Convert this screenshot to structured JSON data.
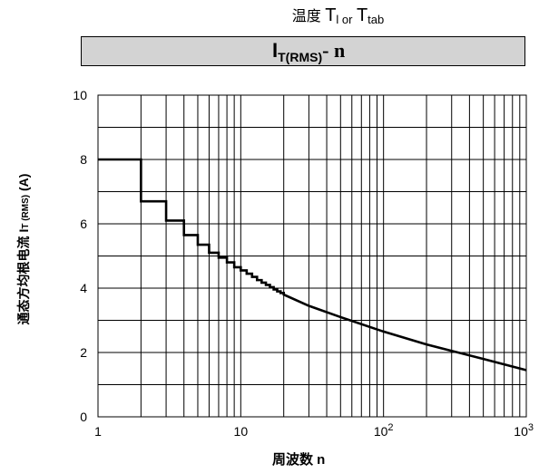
{
  "header": {
    "prefix": "温度 ",
    "t1": "T",
    "t1_sub": "l or",
    "t2": "T",
    "t2_sub": "tab"
  },
  "band": {
    "i": "I",
    "i_sub": "T(RMS)",
    "suffix": "- n"
  },
  "chart_data": {
    "type": "line",
    "title": "",
    "xlabel": "周波数 n",
    "ylabel_main": "通态方均根电流 I",
    "ylabel_sub": "T (RMS)",
    "ylabel_unit": " (A)",
    "x_scale": "log",
    "xlim": [
      1,
      1000
    ],
    "ylim": [
      0,
      10
    ],
    "grid": true,
    "x_ticks": [
      {
        "value": 1,
        "label": "1"
      },
      {
        "value": 10,
        "label": "10"
      },
      {
        "value": 100,
        "base": "10",
        "exp": "2"
      },
      {
        "value": 1000,
        "base": "10",
        "exp": "3"
      }
    ],
    "y_ticks": [
      0,
      2,
      4,
      6,
      8,
      10
    ],
    "series": [
      {
        "x": [
          1,
          2,
          3,
          4,
          5,
          6,
          7,
          8,
          9,
          10,
          11,
          12,
          13,
          14,
          15,
          16,
          17,
          18,
          19,
          20,
          30,
          50,
          100,
          200,
          300,
          500,
          1000
        ],
        "y": [
          8.0,
          6.7,
          6.1,
          5.65,
          5.35,
          5.1,
          4.95,
          4.8,
          4.65,
          4.55,
          4.45,
          4.35,
          4.25,
          4.17,
          4.1,
          4.03,
          3.96,
          3.9,
          3.85,
          3.8,
          3.45,
          3.1,
          2.65,
          2.25,
          2.05,
          1.8,
          1.45
        ]
      }
    ]
  }
}
